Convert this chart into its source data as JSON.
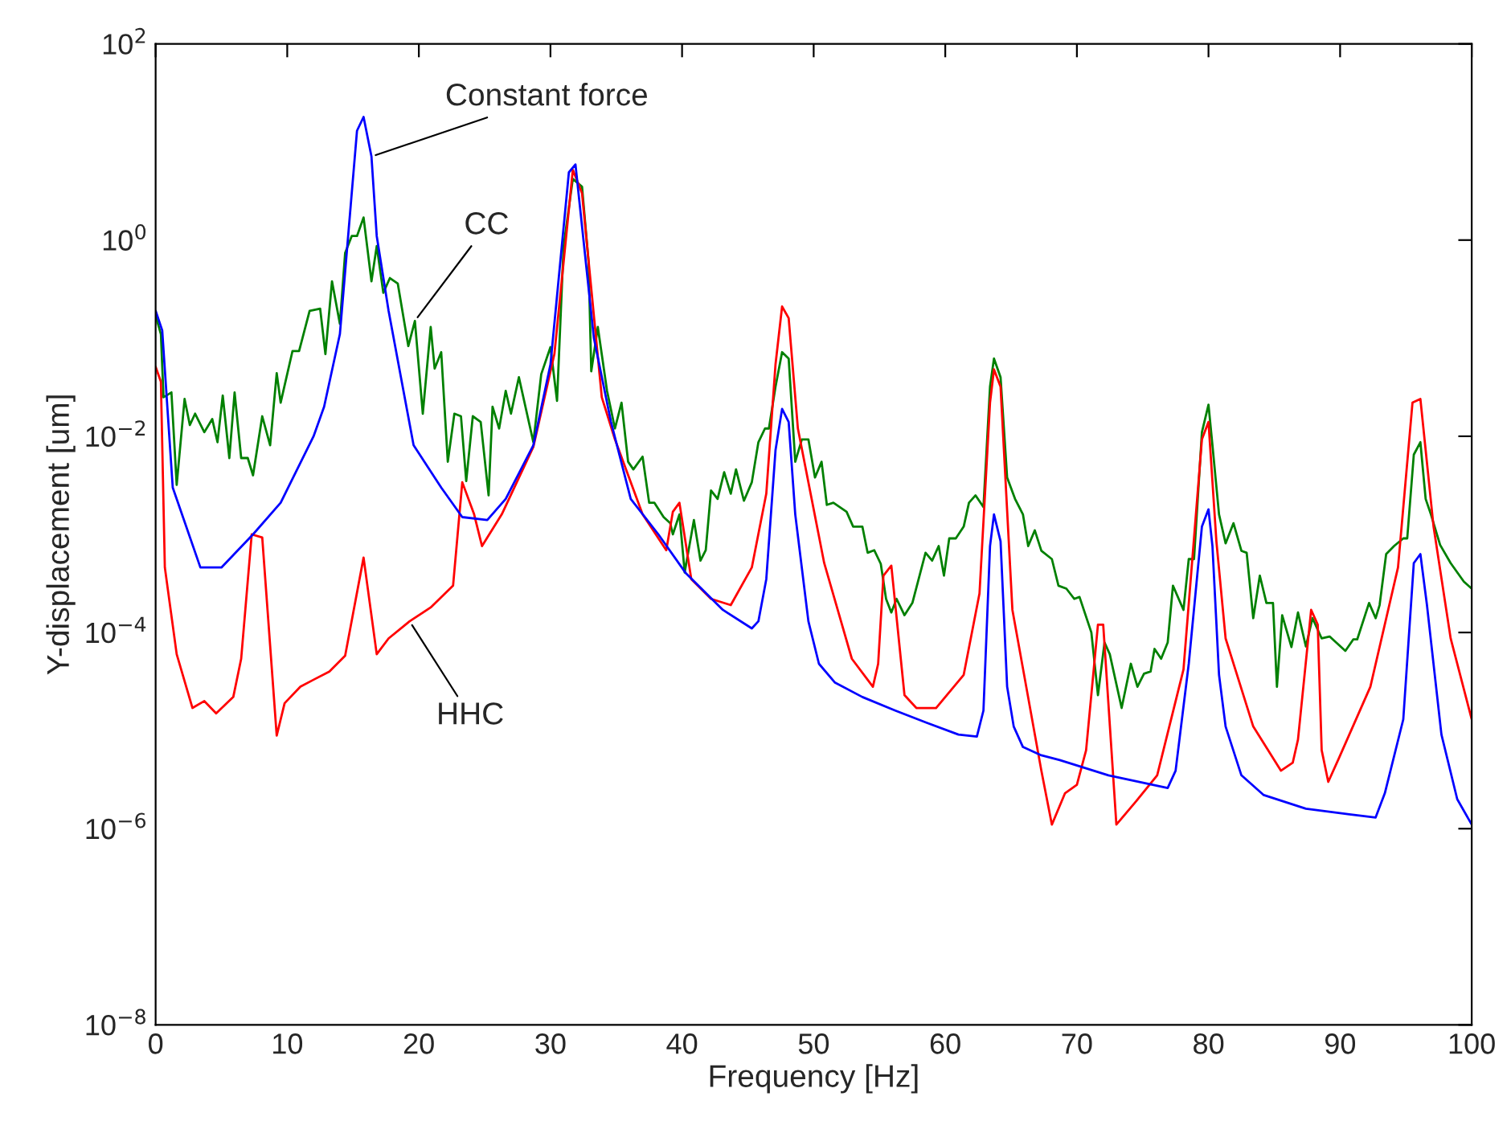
{
  "chart_data": {
    "type": "line",
    "xlabel": "Frequency [Hz]",
    "ylabel": "Y-displacement [um]",
    "log": "y",
    "xlim": [
      0,
      100
    ],
    "xticks": [
      0,
      10,
      20,
      30,
      40,
      50,
      60,
      70,
      80,
      90,
      100
    ],
    "ylim": [
      1e-08,
      100
    ],
    "yticks": [
      {
        "value": 1e-08,
        "label": "10$^{−8}$"
      },
      {
        "value": 1e-06,
        "label": "10$^{−6}$"
      },
      {
        "value": 0.0001,
        "label": "10$^{−4}$"
      },
      {
        "value": 0.01,
        "label": "10$^{−2}$"
      },
      {
        "value": 1,
        "label": "10$^{0}$"
      },
      {
        "value": 100,
        "label": "10$^{2}$"
      }
    ],
    "grid": false,
    "legend": false,
    "marker": "none",
    "line_style": "solid",
    "series": [
      {
        "color": "#008000",
        "x": [
          0,
          0.4,
          0.6,
          1.2,
          1.6,
          2.2,
          2.6,
          3,
          3.7,
          4.3,
          4.7,
          5.1,
          5.6,
          6,
          6.5,
          7,
          7.4,
          8.1,
          8.7,
          9.2,
          9.5,
          10.4,
          10.9,
          11.7,
          12.5,
          12.9,
          13.4,
          14,
          14.4,
          14.9,
          15.3,
          15.8,
          16.4,
          16.8,
          17.3,
          17.8,
          18.4,
          19.2,
          19.7,
          20.3,
          20.9,
          21.2,
          21.7,
          22.2,
          22.7,
          23.2,
          23.6,
          24.1,
          24.7,
          25.3,
          25.6,
          26.1,
          26.6,
          27,
          27.6,
          28.7,
          29.3,
          30,
          30.5,
          31,
          31.7,
          32.4,
          32.9,
          33.1,
          33.6,
          34.3,
          34.9,
          35.4,
          35.9,
          36.3,
          37,
          37.5,
          37.9,
          38.6,
          39.1,
          39.3,
          39.8,
          40.2,
          40.9,
          41.4,
          41.8,
          42.2,
          42.7,
          43.2,
          43.7,
          44.1,
          44.7,
          45.3,
          45.8,
          46.3,
          46.6,
          47.1,
          47.6,
          48.1,
          48.6,
          49.1,
          49.6,
          50.1,
          50.6,
          51,
          51.5,
          52.5,
          53,
          53.7,
          54.1,
          54.6,
          55.1,
          55.5,
          55.9,
          56.3,
          56.9,
          57.5,
          58.5,
          59,
          59.5,
          59.9,
          60.3,
          60.8,
          61.4,
          61.8,
          62.3,
          62.9,
          63.4,
          63.7,
          64.2,
          64.7,
          65.3,
          65.9,
          66.3,
          66.8,
          67.3,
          68.1,
          68.6,
          69.2,
          69.8,
          70.2,
          71.1,
          71.6,
          72.1,
          72.5,
          73.4,
          74.1,
          74.6,
          75.1,
          75.6,
          75.9,
          76.4,
          76.9,
          77.3,
          78.1,
          78.5,
          78.9,
          79.5,
          80,
          80.3,
          80.8,
          81.3,
          81.9,
          82.5,
          82.9,
          83.4,
          83.9,
          84.4,
          84.9,
          85.2,
          85.6,
          86.3,
          86.8,
          87.4,
          87.9,
          88.6,
          89.2,
          90.4,
          91,
          91.3,
          92.2,
          92.7,
          93,
          93.5,
          94.1,
          94.8,
          95.1,
          95.6,
          96.1,
          96.5,
          96.9,
          97.6,
          98.4,
          99.4,
          100
        ],
        "values": [
          0.17,
          0.11,
          0.025,
          0.028,
          0.0032,
          0.024,
          0.013,
          0.017,
          0.011,
          0.015,
          0.0087,
          0.026,
          0.006,
          0.028,
          0.006,
          0.006,
          0.004,
          0.016,
          0.0081,
          0.044,
          0.022,
          0.074,
          0.074,
          0.19,
          0.2,
          0.069,
          0.38,
          0.14,
          0.74,
          1.1,
          1.1,
          1.7,
          0.38,
          0.87,
          0.29,
          0.41,
          0.36,
          0.083,
          0.15,
          0.017,
          0.13,
          0.049,
          0.072,
          0.0055,
          0.017,
          0.016,
          0.0035,
          0.016,
          0.014,
          0.0025,
          0.02,
          0.012,
          0.029,
          0.017,
          0.04,
          0.0087,
          0.043,
          0.081,
          0.023,
          0.87,
          4.2,
          3.5,
          0.59,
          0.046,
          0.13,
          0.029,
          0.012,
          0.022,
          0.0055,
          0.0046,
          0.0062,
          0.0021,
          0.0021,
          0.0015,
          0.0013,
          0.001,
          0.0016,
          0.00041,
          0.0014,
          0.00054,
          0.00069,
          0.0028,
          0.0023,
          0.0043,
          0.0026,
          0.0046,
          0.0022,
          0.0034,
          0.0087,
          0.012,
          0.012,
          0.032,
          0.072,
          0.062,
          0.0055,
          0.0093,
          0.0093,
          0.0038,
          0.0055,
          0.002,
          0.0021,
          0.0017,
          0.0012,
          0.0012,
          0.00065,
          0.00069,
          0.0005,
          0.00022,
          0.00016,
          0.00022,
          0.00015,
          0.0002,
          0.00065,
          0.00054,
          0.00076,
          0.00038,
          0.00091,
          0.00091,
          0.0012,
          0.0021,
          0.0025,
          0.0019,
          0.032,
          0.062,
          0.04,
          0.0038,
          0.0023,
          0.0016,
          0.00076,
          0.0011,
          0.00068,
          0.00056,
          0.0003,
          0.00028,
          0.00022,
          0.00023,
          0.0001,
          2.3e-05,
          7.9e-05,
          6e-05,
          1.7e-05,
          4.8e-05,
          2.8e-05,
          3.8e-05,
          4e-05,
          6.8e-05,
          5.4e-05,
          7.9e-05,
          0.0003,
          0.00017,
          0.00056,
          0.00056,
          0.011,
          0.021,
          0.0081,
          0.0016,
          0.00081,
          0.0013,
          0.00068,
          0.00065,
          0.00014,
          0.00038,
          0.0002,
          0.0002,
          2.8e-05,
          0.00015,
          7.1e-05,
          0.00016,
          7.2e-05,
          0.00014,
          8.7e-05,
          9.1e-05,
          6.5e-05,
          8.5e-05,
          8.5e-05,
          0.0002,
          0.00014,
          0.00019,
          0.00063,
          0.00076,
          0.00091,
          0.00091,
          0.0065,
          0.0087,
          0.0023,
          0.0016,
          0.00078,
          0.00051,
          0.00033,
          0.00028
        ]
      },
      {
        "color": "#ff0000",
        "x": [
          0,
          0.4,
          0.7,
          1.6,
          2.8,
          3.7,
          4.6,
          5.9,
          6.5,
          7.3,
          8.1,
          9.2,
          9.8,
          11,
          12,
          13.2,
          14.4,
          15.8,
          16.8,
          17.7,
          19.3,
          20.9,
          22.6,
          23.3,
          24.2,
          24.8,
          26.3,
          28.7,
          30.3,
          31.7,
          32.4,
          33.9,
          34.9,
          37,
          38.8,
          39.3,
          39.8,
          40.7,
          42.2,
          43.7,
          45.3,
          46.4,
          47.1,
          47.6,
          48.1,
          48.8,
          50.8,
          52.9,
          54.5,
          54.9,
          55.3,
          55.9,
          56.9,
          57.8,
          59.3,
          61.4,
          62.6,
          63.4,
          63.7,
          64.2,
          65.1,
          67.3,
          68.1,
          69.1,
          70,
          70.7,
          71.6,
          72,
          73,
          74.5,
          76.1,
          78.1,
          79.5,
          80,
          80.6,
          81.3,
          83.4,
          85.5,
          86.4,
          86.8,
          87.8,
          88.3,
          88.6,
          89.1,
          89.9,
          92.3,
          94.4,
          95.5,
          96.1,
          97.1,
          98.4,
          100
        ],
        "values": [
          0.051,
          0.036,
          0.00046,
          6e-05,
          1.7e-05,
          2e-05,
          1.5e-05,
          2.2e-05,
          5.4e-05,
          0.001,
          0.00093,
          8.9e-06,
          1.9e-05,
          2.8e-05,
          3.3e-05,
          4e-05,
          5.8e-05,
          0.00058,
          6e-05,
          8.7e-05,
          0.00013,
          0.00018,
          0.0003,
          0.0034,
          0.0016,
          0.00076,
          0.0016,
          0.0078,
          0.069,
          5.2,
          3.0,
          0.025,
          0.0093,
          0.0016,
          0.00069,
          0.0017,
          0.0021,
          0.00035,
          0.00022,
          0.00019,
          0.00046,
          0.0026,
          0.054,
          0.21,
          0.16,
          0.012,
          0.00051,
          5.4e-05,
          2.8e-05,
          4.8e-05,
          0.00038,
          0.00048,
          2.3e-05,
          1.7e-05,
          1.7e-05,
          3.7e-05,
          0.00025,
          0.022,
          0.048,
          0.032,
          0.00017,
          3.9e-06,
          1.1e-06,
          2.3e-06,
          2.8e-06,
          6.3e-06,
          0.00012,
          0.00012,
          1.1e-06,
          1.9e-06,
          3.5e-06,
          4.2e-05,
          0.0093,
          0.014,
          0.00085,
          8.7e-05,
          1.1e-05,
          3.9e-06,
          4.7e-06,
          8.1e-06,
          0.00017,
          0.00012,
          6.3e-06,
          3e-06,
          5.2e-06,
          2.8e-05,
          0.00046,
          0.022,
          0.024,
          0.0012,
          8.7e-05,
          1.3e-05
        ]
      },
      {
        "color": "#0000ff",
        "x": [
          0,
          0.5,
          1.3,
          3.4,
          5,
          7.4,
          9.5,
          12,
          12.8,
          14,
          15.3,
          15.8,
          16.4,
          16.8,
          17.7,
          19.6,
          21.7,
          23.3,
          25.2,
          26.6,
          28.7,
          30,
          31.4,
          31.9,
          33.3,
          34.6,
          36.1,
          38.2,
          40.3,
          43.1,
          45.3,
          45.8,
          46.4,
          47.1,
          47.6,
          48.1,
          48.6,
          49.6,
          50.4,
          51.6,
          53.7,
          56.2,
          58.6,
          61,
          62.4,
          62.9,
          63.4,
          63.7,
          64.2,
          64.7,
          65.2,
          65.9,
          67.3,
          68.7,
          72.4,
          76.9,
          77.5,
          78.5,
          79.5,
          80,
          80.3,
          80.8,
          81.3,
          82.5,
          84.2,
          87.4,
          90.7,
          92.7,
          93.4,
          94.8,
          95.6,
          96.1,
          96.6,
          97.7,
          98.9,
          100
        ],
        "values": [
          0.19,
          0.12,
          0.003,
          0.00046,
          0.00046,
          0.001,
          0.0021,
          0.01,
          0.02,
          0.11,
          13,
          18,
          7.1,
          1.1,
          0.19,
          0.0081,
          0.003,
          0.0015,
          0.0014,
          0.0023,
          0.0081,
          0.054,
          4.9,
          5.9,
          0.1,
          0.014,
          0.0023,
          0.001,
          0.0004,
          0.00017,
          0.00011,
          0.00013,
          0.00035,
          0.0072,
          0.019,
          0.014,
          0.0016,
          0.00013,
          4.8e-05,
          3.1e-05,
          2.2e-05,
          1.6e-05,
          1.2e-05,
          9.1e-06,
          8.7e-06,
          1.6e-05,
          0.00076,
          0.0016,
          0.00085,
          2.8e-05,
          1.1e-05,
          6.8e-06,
          5.6e-06,
          5e-06,
          3.5e-06,
          2.6e-06,
          3.9e-06,
          4.8e-05,
          0.0012,
          0.0018,
          0.00076,
          3.7e-05,
          1.1e-05,
          3.5e-06,
          2.2e-06,
          1.6e-06,
          1.4e-06,
          1.3e-06,
          2.3e-06,
          1.3e-05,
          0.00051,
          0.00063,
          0.00019,
          9.1e-06,
          2e-06,
          1.1e-06
        ]
      }
    ],
    "annotations": [
      {
        "text": "Constant force",
        "x": 16.4,
        "y": 7.1
      },
      {
        "text": "CC",
        "x": 19.7,
        "y": 0.15
      },
      {
        "text": "HHC",
        "x": 19.3,
        "y": 0.00013
      }
    ]
  }
}
